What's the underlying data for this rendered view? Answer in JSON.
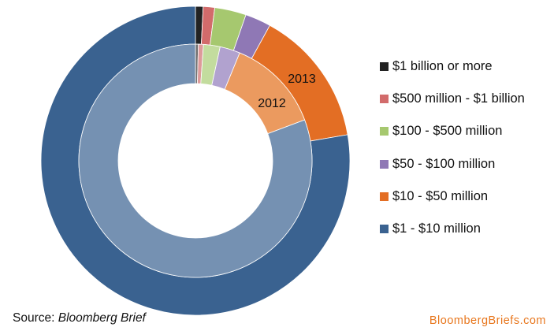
{
  "chart_data": {
    "type": "donut",
    "categories": [
      "$1 billion or more",
      "$500 million - $1 billion",
      "$100 - $500 million",
      "$50 - $100 million",
      "$10  - $50 million",
      "$1 - $10 million"
    ],
    "colors": [
      "#222222",
      "#d26b6b",
      "#a6c86f",
      "#8f78b5",
      "#e36e24",
      "#3a6290"
    ],
    "inner_colors": [
      "#6e6e6e",
      "#dd9a9a",
      "#c3dc9e",
      "#b1a2cf",
      "#eb9a5f",
      "#7591b2"
    ],
    "series": [
      {
        "name": "2013",
        "ring": "outer",
        "values": [
          0.8,
          1.2,
          3.3,
          2.7,
          14.3,
          77.7
        ]
      },
      {
        "name": "2012",
        "ring": "inner",
        "values": [
          0.4,
          0.7,
          2.3,
          2.8,
          13.1,
          80.7
        ]
      }
    ],
    "legend_position": "right"
  },
  "source": {
    "prefix": "Source: ",
    "name": "Bloomberg Brief"
  },
  "brand": "BloombergBriefs.com"
}
